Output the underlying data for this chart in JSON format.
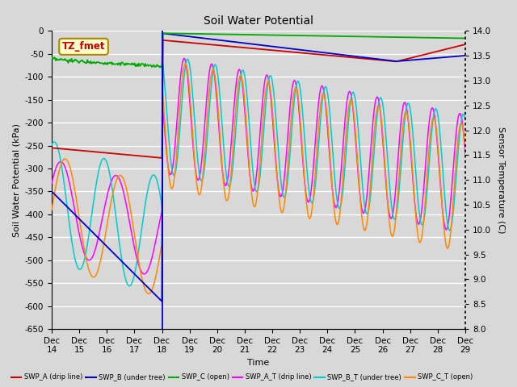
{
  "title": "Soil Water Potential",
  "ylabel_left": "Soil Water Potential (kPa)",
  "ylabel_right": "Sensor Temperature (C)",
  "xlabel": "Time",
  "ylim_left": [
    -650,
    0
  ],
  "ylim_right": [
    8.0,
    14.0
  ],
  "yticks_left": [
    0,
    -50,
    -100,
    -150,
    -200,
    -250,
    -300,
    -350,
    -400,
    -450,
    -500,
    -550,
    -600,
    -650
  ],
  "yticks_right": [
    8.0,
    8.5,
    9.0,
    9.5,
    10.0,
    10.5,
    11.0,
    11.5,
    12.0,
    12.5,
    13.0,
    13.5,
    14.0
  ],
  "xtick_labels": [
    "Dec\n14",
    "Dec\n15",
    "Dec\n16",
    "Dec\n17",
    "Dec\n18",
    "Dec\n19",
    "Dec\n20",
    "Dec\n21",
    "Dec\n22",
    "Dec\n23",
    "Dec\n24",
    "Dec\n25",
    "Dec\n26",
    "Dec\n27",
    "Dec\n28",
    "Dec\n29"
  ],
  "annotation_text": "TZ_fmet",
  "background_color": "#d8d8d8",
  "grid_color": "#ffffff",
  "legend_labels": [
    "SWP_A (drip line)",
    "SWP_B (under tree)",
    "SWP_C (open)",
    "SWP_A_T (drip line)",
    "SWP_B_T (under tree)",
    "SWP_C_T (open)"
  ],
  "legend_colors": [
    "#cc0000",
    "#0000cc",
    "#00aa00",
    "#ff00ff",
    "#00cccc",
    "#ff8800"
  ],
  "colors": {
    "SWP_A": "#cc0000",
    "SWP_B": "#0000cc",
    "SWP_C": "#00aa00",
    "SWP_A_T": "#ff00ff",
    "SWP_B_T": "#00cccc",
    "SWP_C_T": "#ff8800"
  }
}
